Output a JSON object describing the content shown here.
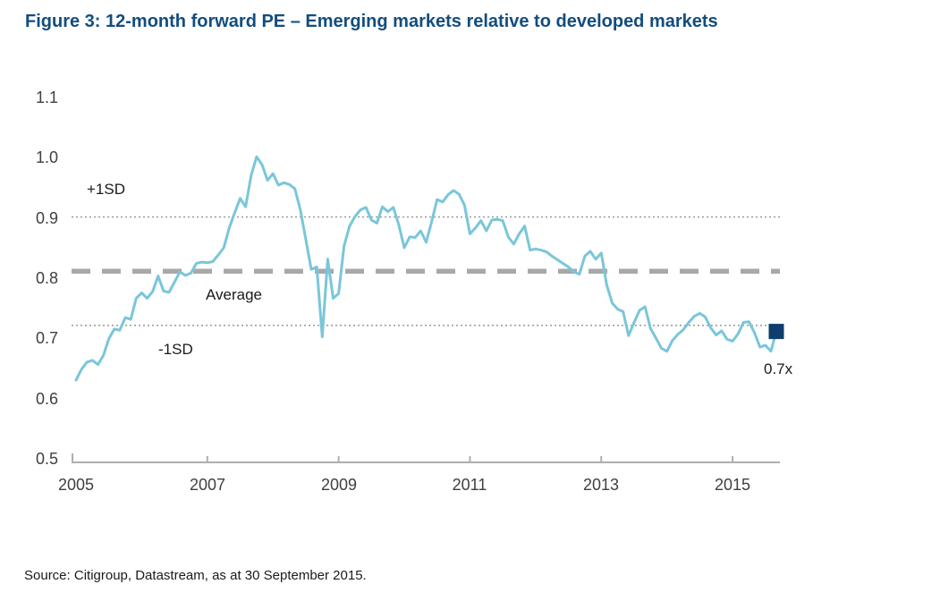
{
  "title": "Figure 3: 12-month forward PE – Emerging markets relative to developed markets",
  "source_note": "Source: Citigroup, Datastream, as at 30 September 2015.",
  "colors": {
    "title_navy": "#124D7F",
    "series_line": "#7AC6DA",
    "average_line": "#A8A8A8",
    "sd_line": "#8F8F8F",
    "axis": "#AFAFAF",
    "tick_text": "#404040",
    "annotation_text": "#1A1A1A",
    "marker_navy": "#0D3E6E"
  },
  "chart_data": {
    "type": "line",
    "title": "12-month forward PE – Emerging markets relative to developed markets",
    "x_start": "Jan 2005",
    "x_end": "Sep 2015",
    "frequency": "monthly",
    "xticks": [
      "2005",
      "2007",
      "2009",
      "2011",
      "2013",
      "2015"
    ],
    "yticks": [
      "1.1",
      "1.0",
      "0.9",
      "0.8",
      "0.7",
      "0.6",
      "0.5"
    ],
    "ylim": [
      0.5,
      1.1
    ],
    "grid": "thin dotted lines at +1SD and -1SD, thick dashed line at average",
    "legend": "none",
    "series": [
      {
        "name": "EM 12-month forward PE relative to DM",
        "values": [
          0.632,
          0.65,
          0.662,
          0.665,
          0.658,
          0.673,
          0.701,
          0.717,
          0.715,
          0.736,
          0.733,
          0.768,
          0.777,
          0.768,
          0.779,
          0.805,
          0.78,
          0.778,
          0.795,
          0.812,
          0.806,
          0.81,
          0.826,
          0.828,
          0.827,
          0.829,
          0.84,
          0.852,
          0.885,
          0.91,
          0.934,
          0.92,
          0.972,
          1.003,
          0.99,
          0.964,
          0.975,
          0.956,
          0.96,
          0.957,
          0.95,
          0.915,
          0.866,
          0.816,
          0.82,
          0.704,
          0.833,
          0.768,
          0.776,
          0.855,
          0.888,
          0.904,
          0.915,
          0.919,
          0.898,
          0.893,
          0.92,
          0.912,
          0.919,
          0.89,
          0.852,
          0.87,
          0.869,
          0.88,
          0.861,
          0.895,
          0.932,
          0.928,
          0.94,
          0.947,
          0.941,
          0.923,
          0.875,
          0.885,
          0.897,
          0.88,
          0.898,
          0.899,
          0.897,
          0.87,
          0.858,
          0.875,
          0.888,
          0.848,
          0.85,
          0.848,
          0.845,
          0.838,
          0.832,
          0.826,
          0.82,
          0.812,
          0.808,
          0.838,
          0.846,
          0.833,
          0.843,
          0.79,
          0.76,
          0.75,
          0.746,
          0.706,
          0.728,
          0.748,
          0.754,
          0.718,
          0.702,
          0.685,
          0.68,
          0.698,
          0.708,
          0.716,
          0.728,
          0.738,
          0.743,
          0.737,
          0.719,
          0.707,
          0.714,
          0.7,
          0.697,
          0.709,
          0.728,
          0.729,
          0.711,
          0.687,
          0.69,
          0.68,
          0.713
        ]
      }
    ],
    "reference_lines": {
      "average": 0.813,
      "plus_1sd": 0.903,
      "minus_1sd": 0.723
    },
    "annotations": {
      "plus_1sd": "+1SD",
      "average": "Average",
      "minus_1sd": "-1SD",
      "last_value": "0.7x"
    },
    "last_point": {
      "period": "Sep 2015",
      "value": 0.713
    }
  }
}
